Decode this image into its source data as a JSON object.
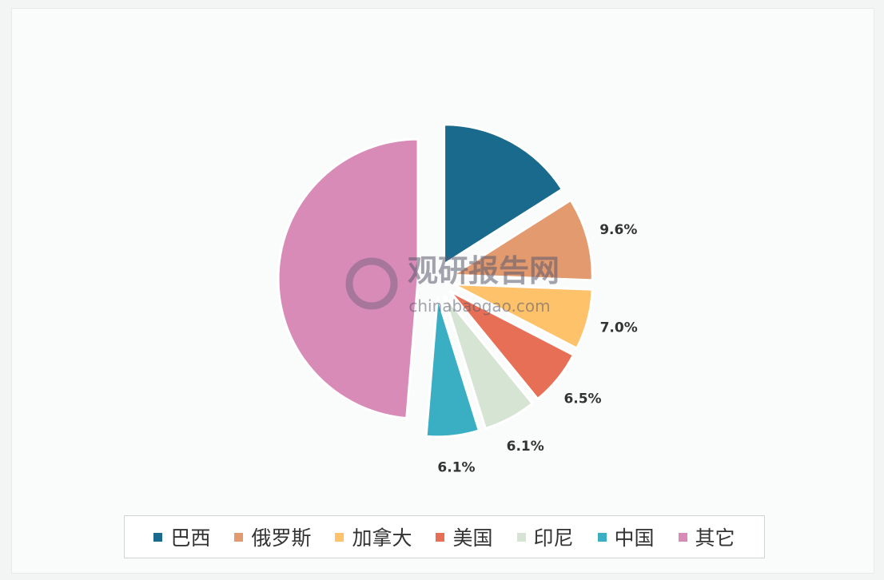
{
  "chart_data": {
    "type": "pie",
    "title": "",
    "categories": [
      "巴西",
      "俄罗斯",
      "加拿大",
      "美国",
      "印尼",
      "中国",
      "其它"
    ],
    "values": [
      16.0,
      9.6,
      7.0,
      6.5,
      6.1,
      6.1,
      48.7
    ],
    "data_labels": [
      "",
      "9.6%",
      "7.0%",
      "6.5%",
      "6.1%",
      "6.1%",
      ""
    ],
    "colors": [
      "#1a6a8e",
      "#e39a6f",
      "#fdc26a",
      "#e76f55",
      "#d6e4d3",
      "#3aaec2",
      "#d98bb8"
    ],
    "exploded": true,
    "legend_position": "bottom"
  },
  "watermark": {
    "name": "观研报告网",
    "url": "chinabaogao.com"
  }
}
